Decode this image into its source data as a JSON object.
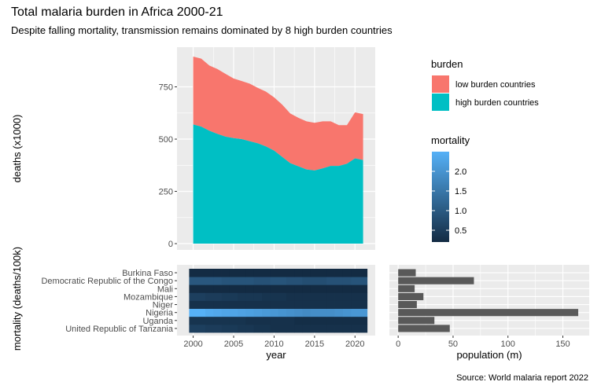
{
  "title": "Total malaria burden in Africa 2000-21",
  "subtitle": "Despite falling mortality, transmission remains dominated by 8 high burden countries",
  "caption": "Source: World malaria report 2022",
  "colors": {
    "low_burden": "#F8766D",
    "high_burden": "#00BFC4",
    "panel_bg": "#EBEBEB",
    "grid": "#FFFFFF",
    "bar": "#595959",
    "mortality_low": "#132B43",
    "mortality_high": "#56B1F7"
  },
  "chart_data": [
    {
      "type": "area",
      "stacked": true,
      "xlabel": "year",
      "ylabel": "deaths (x1000)",
      "xlim": [
        1998,
        2022.5
      ],
      "ylim": [
        -30,
        940
      ],
      "yticks": [
        0,
        250,
        500,
        750
      ],
      "x": [
        2000,
        2001,
        2002,
        2003,
        2004,
        2005,
        2006,
        2007,
        2008,
        2009,
        2010,
        2011,
        2012,
        2013,
        2014,
        2015,
        2016,
        2017,
        2018,
        2019,
        2020,
        2021
      ],
      "series": [
        {
          "name": "high burden countries",
          "color": "#00BFC4",
          "values": [
            570,
            560,
            540,
            525,
            512,
            505,
            500,
            490,
            480,
            465,
            445,
            415,
            385,
            370,
            355,
            350,
            360,
            372,
            372,
            382,
            408,
            400
          ]
        },
        {
          "name": "low burden countries",
          "color": "#F8766D",
          "values": [
            325,
            325,
            312,
            310,
            300,
            285,
            278,
            275,
            265,
            262,
            255,
            250,
            238,
            232,
            230,
            228,
            225,
            213,
            195,
            185,
            220,
            220
          ]
        }
      ],
      "legend": {
        "title": "burden",
        "position": "right",
        "entries": [
          "low burden countries",
          "high burden countries"
        ]
      }
    },
    {
      "type": "heatmap",
      "xlabel": "year",
      "ylabel": "mortality (deaths/100k)",
      "xlim": [
        1998,
        2022.5
      ],
      "xticks": [
        2000,
        2005,
        2010,
        2015,
        2020
      ],
      "x": [
        2000,
        2001,
        2002,
        2003,
        2004,
        2005,
        2006,
        2007,
        2008,
        2009,
        2010,
        2011,
        2012,
        2013,
        2014,
        2015,
        2016,
        2017,
        2018,
        2019,
        2020,
        2021
      ],
      "categories": [
        "United Republic of Tanzania",
        "Uganda",
        "Nigeria",
        "Niger",
        "Mozambique",
        "Mali",
        "Democratic Republic of the Congo",
        "Burkina Faso"
      ],
      "values": [
        [
          0.55,
          0.55,
          0.5,
          0.5,
          0.45,
          0.45,
          0.4,
          0.4,
          0.35,
          0.35,
          0.3,
          0.3,
          0.3,
          0.3,
          0.3,
          0.3,
          0.3,
          0.3,
          0.3,
          0.3,
          0.3,
          0.3
        ],
        [
          0.35,
          0.35,
          0.35,
          0.35,
          0.35,
          0.35,
          0.35,
          0.3,
          0.3,
          0.3,
          0.3,
          0.3,
          0.3,
          0.25,
          0.25,
          0.25,
          0.25,
          0.25,
          0.25,
          0.25,
          0.25,
          0.25
        ],
        [
          2.5,
          2.5,
          2.4,
          2.35,
          2.3,
          2.3,
          2.25,
          2.2,
          2.15,
          2.1,
          2.05,
          2.0,
          1.95,
          1.9,
          1.85,
          1.9,
          1.9,
          1.9,
          1.95,
          2.0,
          2.05,
          2.05
        ],
        [
          0.3,
          0.3,
          0.3,
          0.3,
          0.3,
          0.3,
          0.3,
          0.3,
          0.3,
          0.3,
          0.3,
          0.3,
          0.3,
          0.3,
          0.3,
          0.3,
          0.3,
          0.3,
          0.3,
          0.3,
          0.3,
          0.3
        ],
        [
          0.55,
          0.55,
          0.5,
          0.5,
          0.45,
          0.45,
          0.4,
          0.4,
          0.4,
          0.35,
          0.35,
          0.35,
          0.3,
          0.3,
          0.3,
          0.3,
          0.3,
          0.3,
          0.3,
          0.3,
          0.3,
          0.3
        ],
        [
          0.2,
          0.2,
          0.2,
          0.2,
          0.2,
          0.2,
          0.2,
          0.2,
          0.2,
          0.2,
          0.2,
          0.2,
          0.2,
          0.2,
          0.2,
          0.2,
          0.2,
          0.2,
          0.2,
          0.2,
          0.2,
          0.2
        ],
        [
          0.95,
          0.95,
          0.95,
          0.95,
          0.9,
          0.9,
          0.9,
          0.9,
          0.85,
          0.85,
          0.9,
          0.9,
          0.85,
          0.85,
          0.8,
          0.8,
          0.8,
          0.85,
          0.85,
          0.85,
          0.9,
          0.9
        ],
        [
          0.2,
          0.2,
          0.2,
          0.2,
          0.2,
          0.2,
          0.2,
          0.2,
          0.2,
          0.2,
          0.2,
          0.2,
          0.2,
          0.2,
          0.2,
          0.2,
          0.2,
          0.2,
          0.2,
          0.2,
          0.2,
          0.2
        ]
      ],
      "color_scale": {
        "title": "mortality",
        "range": [
          0.2,
          2.5
        ],
        "ticks": [
          0.5,
          1.0,
          1.5,
          2.0
        ]
      },
      "colorbar_labels": [
        "0.5",
        "1.0",
        "1.5",
        "2.0"
      ]
    },
    {
      "type": "bar",
      "orientation": "horizontal",
      "xlabel": "population (m)",
      "xlim": [
        -8,
        174
      ],
      "xticks": [
        0,
        50,
        100,
        150
      ],
      "categories": [
        "United Republic of Tanzania",
        "Uganda",
        "Nigeria",
        "Niger",
        "Mozambique",
        "Mali",
        "Democratic Republic of the Congo",
        "Burkina Faso"
      ],
      "values": [
        47,
        33,
        164,
        17,
        23,
        15,
        69,
        16
      ]
    }
  ]
}
